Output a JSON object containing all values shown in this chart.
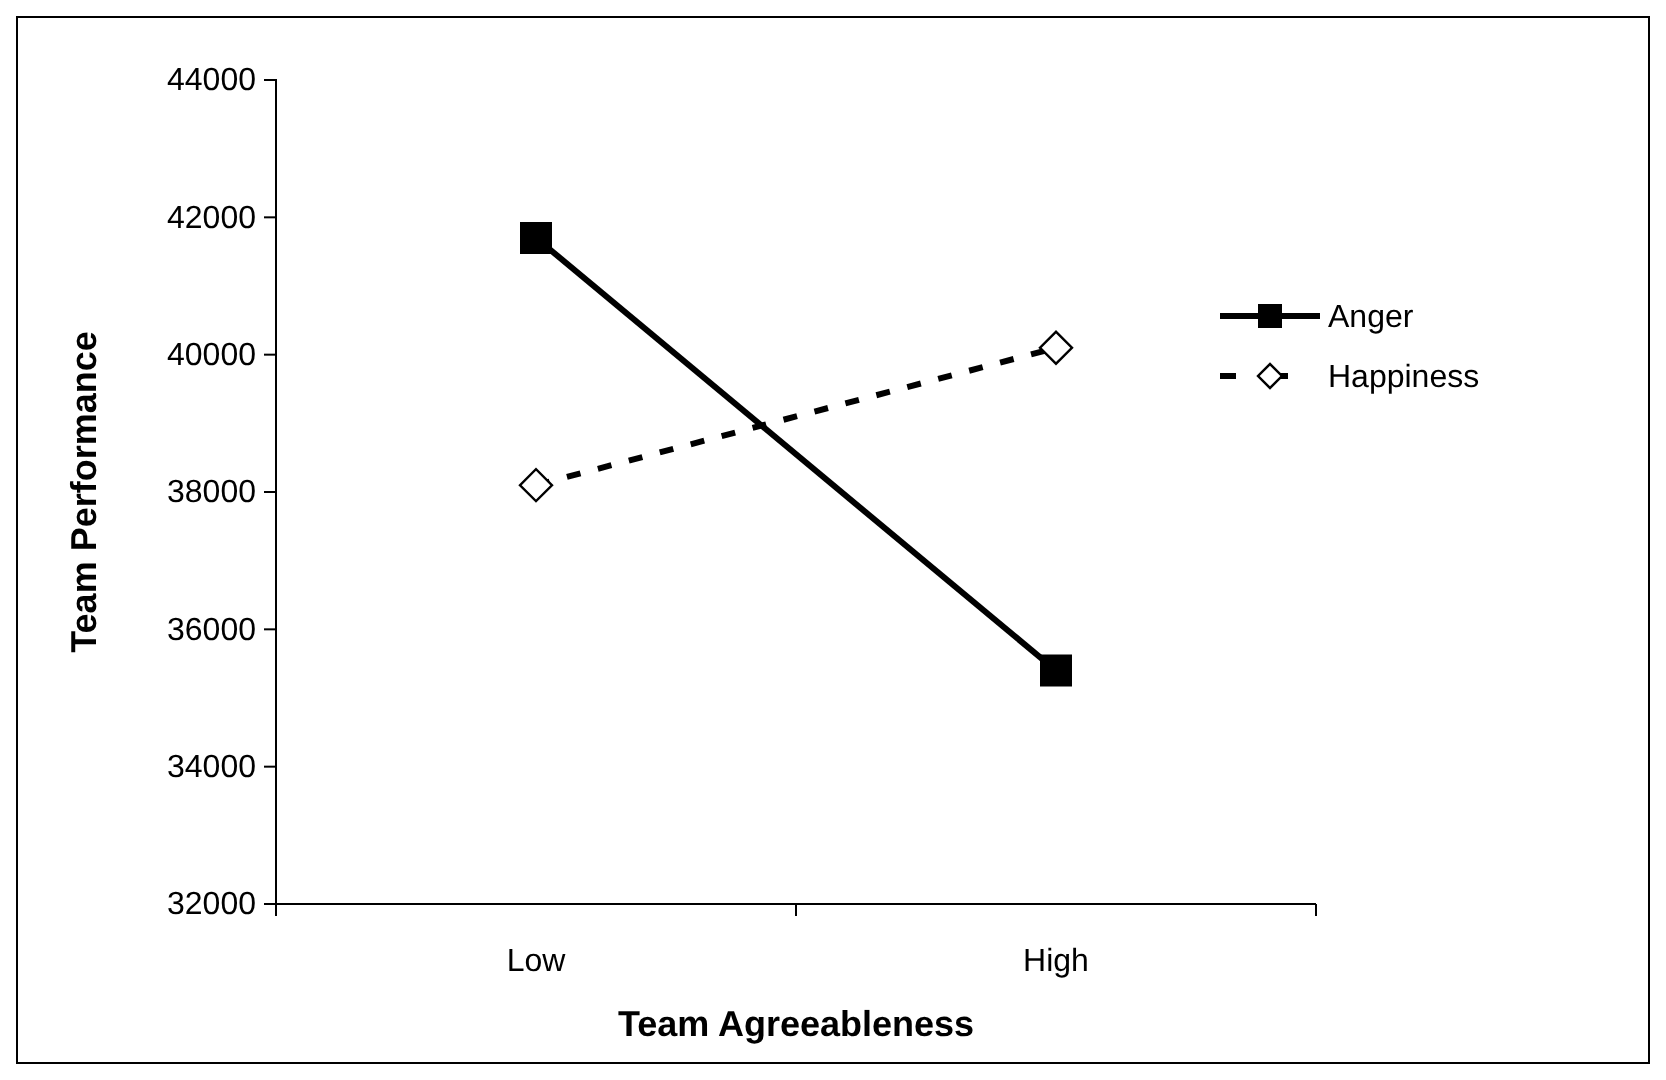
{
  "chart_data": {
    "type": "line",
    "xlabel": "Team Agreeableness",
    "ylabel": "Team Performance",
    "categories": [
      "Low",
      "High"
    ],
    "ylim": [
      32000,
      44000
    ],
    "yticks": [
      32000,
      34000,
      36000,
      38000,
      40000,
      42000,
      44000
    ],
    "grid": false,
    "legend": "right",
    "series": [
      {
        "name": "Anger",
        "color": "#000000",
        "values": [
          41700,
          35400
        ],
        "marker": "square",
        "line_style": "solid"
      },
      {
        "name": "Happiness",
        "color": "#000000",
        "values": [
          38100,
          40100
        ],
        "marker": "diamond",
        "line_style": "dashed"
      }
    ]
  }
}
